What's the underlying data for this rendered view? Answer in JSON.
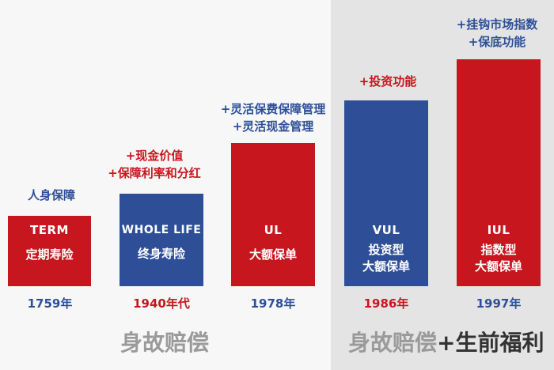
{
  "colors": {
    "red": "#c8161e",
    "blue": "#2e4f98",
    "gray": "#9a9a9a",
    "dark": "#333333"
  },
  "products": [
    {
      "code": "TERM",
      "name": "定期寿险",
      "year": "1759年",
      "features": [
        "人身保障"
      ],
      "bar_color": "red",
      "year_color": "blue",
      "feature_color": "blue"
    },
    {
      "code": "WHOLE LIFE",
      "name": "终身寿险",
      "year": "1940年代",
      "features": [
        "+现金价值",
        "+保障利率和分红"
      ],
      "bar_color": "blue",
      "year_color": "red",
      "feature_color": "red"
    },
    {
      "code": "UL",
      "name": "大额保单",
      "year": "1978年",
      "features": [
        "+灵活保费保障管理",
        "+灵活现金管理"
      ],
      "bar_color": "red",
      "year_color": "blue",
      "feature_color": "blue"
    },
    {
      "code": "VUL",
      "name": "投资型\n大额保单",
      "year": "1986年",
      "features": [
        "+投资功能"
      ],
      "bar_color": "blue",
      "year_color": "red",
      "feature_color": "red"
    },
    {
      "code": "IUL",
      "name": "指数型\n大额保单",
      "year": "1997年",
      "features": [
        "+挂钩市场指数",
        "+保底功能"
      ],
      "bar_color": "red",
      "year_color": "blue",
      "feature_color": "blue"
    }
  ],
  "groups": {
    "left": "身故赔偿",
    "right_main": "身故赔偿",
    "right_extra": "+生前福利"
  }
}
